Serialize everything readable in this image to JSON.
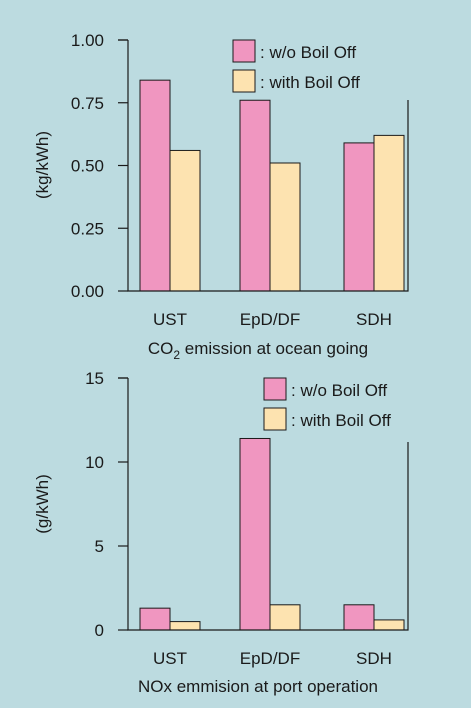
{
  "colors": {
    "background": "#bcdbe0",
    "without_boil_off": "#f096c0",
    "with_boil_off": "#fde3b0"
  },
  "chart_data": [
    {
      "type": "bar",
      "categories": [
        "UST",
        "EpD/DF",
        "SDH"
      ],
      "series": [
        {
          "name": ": w/o Boil Off",
          "values": [
            0.84,
            0.76,
            0.59
          ]
        },
        {
          "name": ": with Boil Off",
          "values": [
            0.56,
            0.51,
            0.62
          ]
        }
      ],
      "title_main": "CO",
      "title_sub": "2",
      "title_rest": " emission at ocean going",
      "xlabel": "",
      "ylabel": "(kg/kWh)",
      "ylim": [
        0,
        1.0
      ],
      "yticks": [
        "0.00",
        "0.25",
        "0.50",
        "0.75",
        "1.00"
      ],
      "legend": "top-right",
      "grid": false
    },
    {
      "type": "bar",
      "categories": [
        "UST",
        "EpD/DF",
        "SDH"
      ],
      "series": [
        {
          "name": ": w/o Boil Off",
          "values": [
            1.3,
            11.4,
            1.5
          ]
        },
        {
          "name": ": with Boil Off",
          "values": [
            0.5,
            1.5,
            0.6
          ]
        }
      ],
      "title": "NOx emmision at port operation",
      "xlabel": "",
      "ylabel": "(g/kWh)",
      "ylim": [
        0,
        15
      ],
      "yticks": [
        "0",
        "5",
        "10",
        "15"
      ],
      "legend": "top-right",
      "grid": false
    }
  ]
}
